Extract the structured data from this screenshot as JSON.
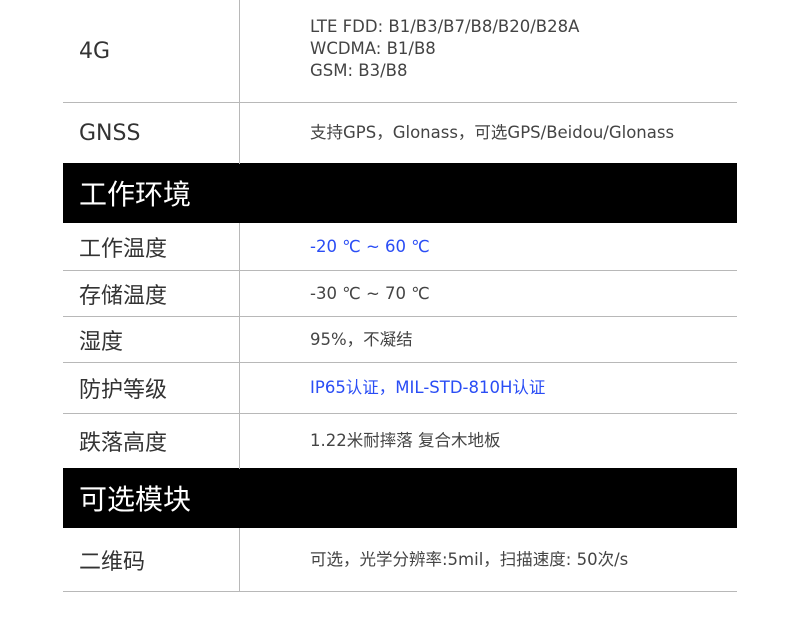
{
  "rows_top": [
    {
      "label": "4G",
      "values": [
        "LTE FDD: B1/B3/B7/B8/B20/B28A",
        "WCDMA: B1/B8",
        "GSM: B3/B8"
      ]
    },
    {
      "label": "GNSS",
      "values": [
        "支持GPS，Glonass，可选GPS/Beidou/Glonass"
      ]
    }
  ],
  "section1": {
    "title": "工作环境",
    "rows": [
      {
        "label": "工作温度",
        "value": "-20 ℃ ~ 60 ℃",
        "highlight": true
      },
      {
        "label": "存储温度",
        "value": "-30 ℃ ~ 70 ℃"
      },
      {
        "label": "湿度",
        "value": "95%，不凝结"
      },
      {
        "label": "防护等级",
        "value": "IP65认证，MIL-STD-810H认证",
        "highlight": true
      },
      {
        "label": "跌落高度",
        "value": "1.22米耐摔落 复合木地板"
      }
    ]
  },
  "section2": {
    "title": "可选模块",
    "rows": [
      {
        "label": "二维码",
        "value": "可选，光学分辨率:5mil，扫描速度: 50次/s"
      }
    ]
  },
  "colors": {
    "header_bg": "#000000",
    "header_text": "#ffffff",
    "highlight_text": "#2a4df5",
    "body_text": "#444444"
  }
}
